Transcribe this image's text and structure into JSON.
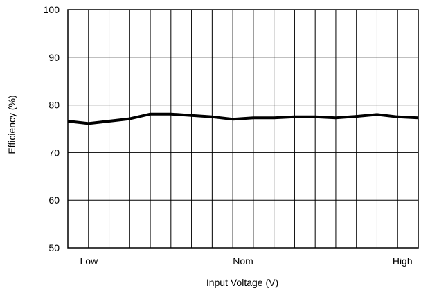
{
  "chart_data": {
    "type": "line",
    "xlabel": "Input Voltage (V)",
    "ylabel": "Efficiency (%)",
    "ylim": [
      50,
      100
    ],
    "yticks": [
      "100",
      "90",
      "80",
      "70",
      "60",
      "50"
    ],
    "xtick_labels": [
      "Low",
      "Nom",
      "High"
    ],
    "grid": true,
    "x": [
      0,
      1,
      2,
      3,
      4,
      5,
      6,
      7,
      8,
      9,
      10,
      11,
      12,
      13,
      14,
      15,
      16,
      17
    ],
    "series": [
      {
        "values": [
          76.6,
          76.1,
          76.6,
          77.1,
          78.1,
          78.1,
          77.8,
          77.5,
          77.0,
          77.3,
          77.3,
          77.5,
          77.5,
          77.3,
          77.6,
          78.0,
          77.5,
          77.3
        ]
      }
    ],
    "line_color": "#000000"
  }
}
